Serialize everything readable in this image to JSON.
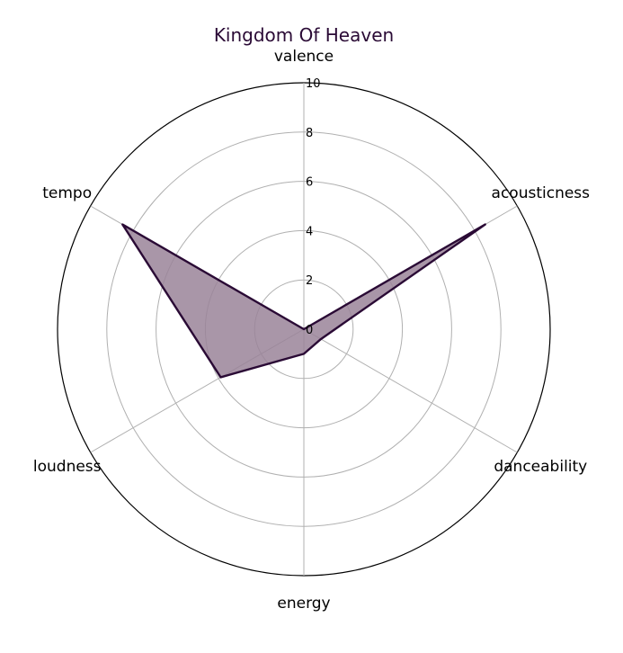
{
  "chart_data": {
    "type": "radar",
    "title": "Kingdom Of Heaven",
    "axes": [
      "valence",
      "acousticness",
      "danceability",
      "energy",
      "loudness",
      "tempo"
    ],
    "series": [
      {
        "values": [
          0.0,
          8.5,
          0.8,
          1.0,
          3.9,
          8.5
        ]
      }
    ],
    "rlim": [
      0,
      10
    ],
    "rticks": [
      "0",
      "2",
      "4",
      "6",
      "8",
      "10"
    ],
    "rtick_values": [
      0,
      2,
      4,
      6,
      8,
      10
    ],
    "colors": {
      "title": "#2a0a35",
      "line": "#2a0a35",
      "fill": "#9a8499"
    }
  }
}
